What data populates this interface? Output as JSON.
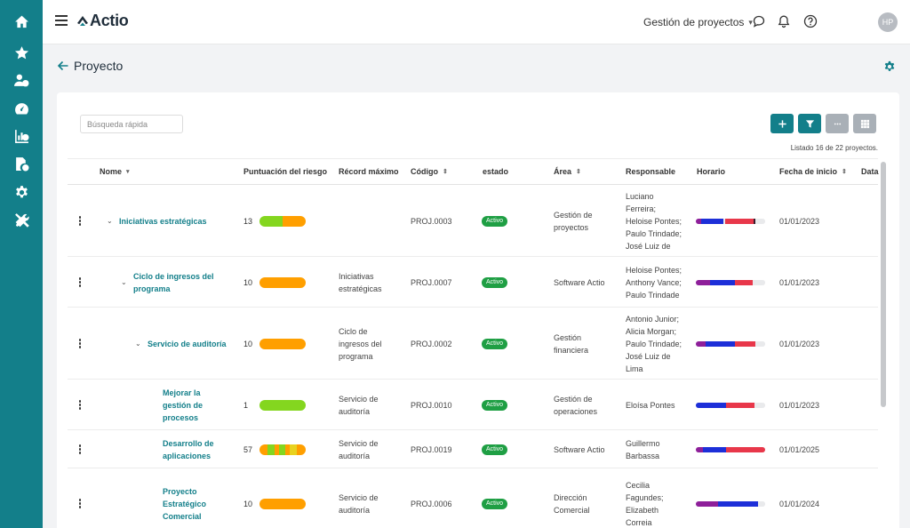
{
  "app": {
    "logo_text": "Actio",
    "workspace": "Gestión de proyectos",
    "user_initials": "HP"
  },
  "page": {
    "title": "Proyecto"
  },
  "toolbar": {
    "search_placeholder": "Búsqueda rápida",
    "listing": "Listado 16 de 22 proyectos."
  },
  "colors": {
    "brand": "#137f8a",
    "risk_green": "#84d61f",
    "risk_orange": "#ff9f00",
    "active_badge": "#1f9f44"
  },
  "columns": [
    {
      "label": "Nome",
      "sort": "▾"
    },
    {
      "label": "Puntuación del riesgo",
      "sort": ""
    },
    {
      "label": "Récord máximo",
      "sort": ""
    },
    {
      "label": "Código",
      "sort": "⇕"
    },
    {
      "label": "estado",
      "sort": ""
    },
    {
      "label": "Área",
      "sort": "⇕"
    },
    {
      "label": "Responsable",
      "sort": ""
    },
    {
      "label": "Horario",
      "sort": ""
    },
    {
      "label": "Fecha de inicio",
      "sort": "⇕"
    },
    {
      "label": "Data",
      "sort": ""
    }
  ],
  "rows": [
    {
      "name_lines": [
        "Iniciativas estratégicas"
      ],
      "level": 0,
      "expandable": true,
      "risk": "13",
      "risk_segments": [
        [
          "#84d61f",
          50
        ],
        [
          "#ff9f00",
          50
        ]
      ],
      "parent_lines": [],
      "code": "PROJ.0003",
      "status": "Activo",
      "area_lines": [
        "Gestión de",
        "proyectos"
      ],
      "responsible_lines": [
        "Luciano",
        "Ferreira;",
        "Heloise Pontes;",
        "Paulo Trindade;",
        "José Luiz de"
      ],
      "schedule": [
        [
          "#8e1f9a",
          8
        ],
        [
          "#1d2fd8",
          32
        ],
        [
          "#e9e9ec",
          2
        ],
        [
          "#e8374a",
          42
        ],
        [
          "#3a1d2d",
          2
        ],
        [
          "#e9eaec",
          14
        ]
      ],
      "start": "01/01/2023"
    },
    {
      "name_lines": [
        "Ciclo de ingresos del",
        "programa"
      ],
      "level": 1,
      "expandable": true,
      "risk": "10",
      "risk_segments": [
        [
          "#ff9f00",
          100
        ]
      ],
      "parent_lines": [
        "Iniciativas",
        "estratégicas"
      ],
      "code": "PROJ.0007",
      "status": "Activo",
      "area_lines": [
        "Software Actio"
      ],
      "responsible_lines": [
        "Heloise Pontes;",
        "Anthony Vance;",
        "Paulo Trindade"
      ],
      "schedule": [
        [
          "#8e1f9a",
          20
        ],
        [
          "#1d2fd8",
          36
        ],
        [
          "#e8374a",
          26
        ],
        [
          "#e9eaec",
          18
        ]
      ],
      "start": "01/01/2023"
    },
    {
      "name_lines": [
        "Servicio de auditoría"
      ],
      "level": 2,
      "expandable": true,
      "risk": "10",
      "risk_segments": [
        [
          "#ff9f00",
          100
        ]
      ],
      "parent_lines": [
        "Ciclo de",
        "ingresos del",
        "programa"
      ],
      "code": "PROJ.0002",
      "status": "Activo",
      "area_lines": [
        "Gestión",
        "financiera"
      ],
      "responsible_lines": [
        "Antonio Junior;",
        "Alicia Morgan;",
        "Paulo Trindade;",
        "José Luiz de",
        "Lima"
      ],
      "schedule": [
        [
          "#8e1f9a",
          14
        ],
        [
          "#1d2fd8",
          42
        ],
        [
          "#e8374a",
          30
        ],
        [
          "#e9eaec",
          14
        ]
      ],
      "start": "01/01/2023"
    },
    {
      "name_lines": [
        "Mejorar la",
        "gestión de",
        "procesos"
      ],
      "level": 3,
      "expandable": false,
      "risk": "1",
      "risk_segments": [
        [
          "#84d61f",
          100
        ]
      ],
      "parent_lines": [
        "Servicio de",
        "auditoría"
      ],
      "code": "PROJ.0010",
      "status": "Activo",
      "area_lines": [
        "Gestión de",
        "operaciones"
      ],
      "responsible_lines": [
        "Eloísa Pontes"
      ],
      "schedule": [
        [
          "#1d2fd8",
          44
        ],
        [
          "#e8374a",
          40
        ],
        [
          "#e9eaec",
          16
        ]
      ],
      "start": "01/01/2023"
    },
    {
      "name_lines": [
        "Desarrollo de",
        "aplicaciones"
      ],
      "level": 3,
      "expandable": false,
      "risk": "57",
      "risk_segments": [
        [
          "#ff9f00",
          18
        ],
        [
          "#84d61f",
          14
        ],
        [
          "#ff9f00",
          10
        ],
        [
          "#84d61f",
          14
        ],
        [
          "#ff9f00",
          10
        ],
        [
          "#e8d21f",
          14
        ],
        [
          "#ff9f00",
          20
        ]
      ],
      "parent_lines": [
        "Servicio de",
        "auditoría"
      ],
      "code": "PROJ.0019",
      "status": "Activo",
      "area_lines": [
        "Software Actio"
      ],
      "responsible_lines": [
        "Guillermo",
        "Barbassa"
      ],
      "schedule": [
        [
          "#8e1f9a",
          10
        ],
        [
          "#1d2fd8",
          34
        ],
        [
          "#e8374a",
          56
        ]
      ],
      "start": "01/01/2025"
    },
    {
      "name_lines": [
        "Proyecto",
        "Estratégico",
        "Comercial"
      ],
      "level": 3,
      "expandable": false,
      "risk": "10",
      "risk_segments": [
        [
          "#ff9f00",
          100
        ]
      ],
      "parent_lines": [
        "Servicio de",
        "auditoría"
      ],
      "code": "PROJ.0006",
      "status": "Activo",
      "area_lines": [
        "Dirección",
        "Comercial"
      ],
      "responsible_lines": [
        "Cecilia",
        "Fagundes;",
        "Elizabeth",
        "Correia"
      ],
      "schedule": [
        [
          "#8e1f9a",
          32
        ],
        [
          "#1d2fd8",
          58
        ],
        [
          "#e9eaec",
          10
        ]
      ],
      "start": "01/01/2024"
    }
  ]
}
